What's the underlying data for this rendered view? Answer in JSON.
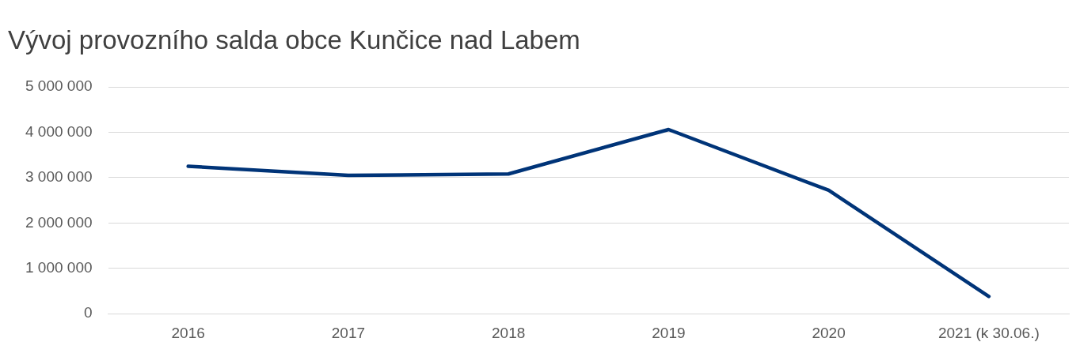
{
  "chart_data": {
    "type": "line",
    "title": "Vývoj provozního salda obce Kunčice nad Labem",
    "categories": [
      "2016",
      "2017",
      "2018",
      "2019",
      "2020",
      "2021 (k 30.06.)"
    ],
    "series": [
      {
        "color": "#003478",
        "values": [
          3250000,
          3050000,
          3080000,
          4060000,
          2720000,
          380000
        ]
      }
    ],
    "ylim": [
      0,
      5000000
    ],
    "yticks": [
      {
        "value": 0,
        "label": "0"
      },
      {
        "value": 1000000,
        "label": "1 000 000"
      },
      {
        "value": 2000000,
        "label": "2 000 000"
      },
      {
        "value": 3000000,
        "label": "3 000 000"
      },
      {
        "value": 4000000,
        "label": "4 000 000"
      },
      {
        "value": 5000000,
        "label": "5 000 000"
      }
    ],
    "grid": "y",
    "legend": false,
    "marker": "none",
    "line_style": "solid"
  }
}
